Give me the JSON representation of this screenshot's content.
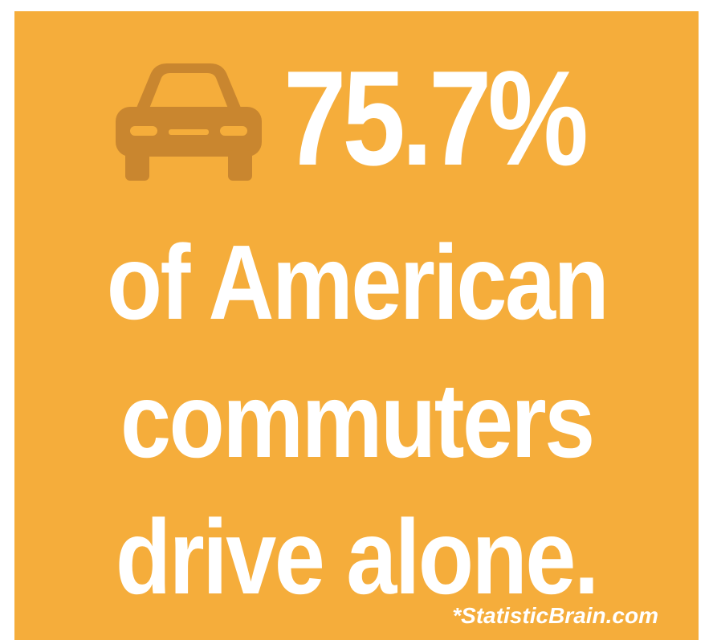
{
  "colors": {
    "background": "#F5AD3B",
    "text": "#FFFFFF",
    "icon": "#C9862F"
  },
  "icon": "car-icon",
  "headline": {
    "stat": "75.7%",
    "line_1": "of American",
    "line_2": "commuters",
    "line_3": "drive alone."
  },
  "source": "*StatisticBrain.com"
}
